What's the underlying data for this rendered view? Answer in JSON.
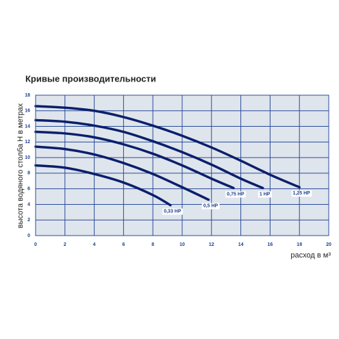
{
  "chart_data": {
    "type": "line",
    "title": "Кривые производительности",
    "y_label": "высота водяного столба Н в метрах",
    "x_label": "расход в м³",
    "xlim": [
      0,
      20
    ],
    "xticks": [
      0,
      2,
      4,
      6,
      8,
      10,
      12,
      14,
      16,
      18,
      20
    ],
    "ylim": [
      0,
      18
    ],
    "yticks": [
      0,
      2,
      4,
      6,
      8,
      10,
      12,
      14,
      16,
      18
    ],
    "grid": true,
    "series": [
      {
        "name": "0,33 HP",
        "color": "#0b1f6b",
        "x": [
          0,
          2,
          4,
          6,
          8,
          9.2
        ],
        "values": [
          9,
          8.7,
          7.9,
          6.8,
          5.2,
          3.9
        ]
      },
      {
        "name": "0,5 HP",
        "color": "#0b1f6b",
        "x": [
          0,
          2,
          4,
          6,
          8,
          10,
          11.8
        ],
        "values": [
          11.4,
          11.1,
          10.4,
          9.3,
          7.9,
          6.2,
          4.6
        ]
      },
      {
        "name": "0,75 HP",
        "color": "#0b1f6b",
        "x": [
          0,
          2,
          4,
          6,
          8,
          10,
          12,
          13.5
        ],
        "values": [
          13.3,
          13.1,
          12.6,
          11.7,
          10.5,
          9,
          7.3,
          6.1
        ]
      },
      {
        "name": "1 HP",
        "color": "#0b1f6b",
        "x": [
          0,
          2,
          4,
          6,
          8,
          10,
          12,
          14,
          15.5
        ],
        "values": [
          14.8,
          14.6,
          14.1,
          13.3,
          12.1,
          10.7,
          9.1,
          7.3,
          6.1
        ]
      },
      {
        "name": "1,25 HP",
        "color": "#0b1f6b",
        "x": [
          0,
          2,
          4,
          6,
          8,
          10,
          12,
          14,
          16,
          18
        ],
        "values": [
          16.6,
          16.4,
          16,
          15.2,
          14.1,
          12.8,
          11.3,
          9.6,
          7.8,
          6.2
        ]
      }
    ]
  }
}
